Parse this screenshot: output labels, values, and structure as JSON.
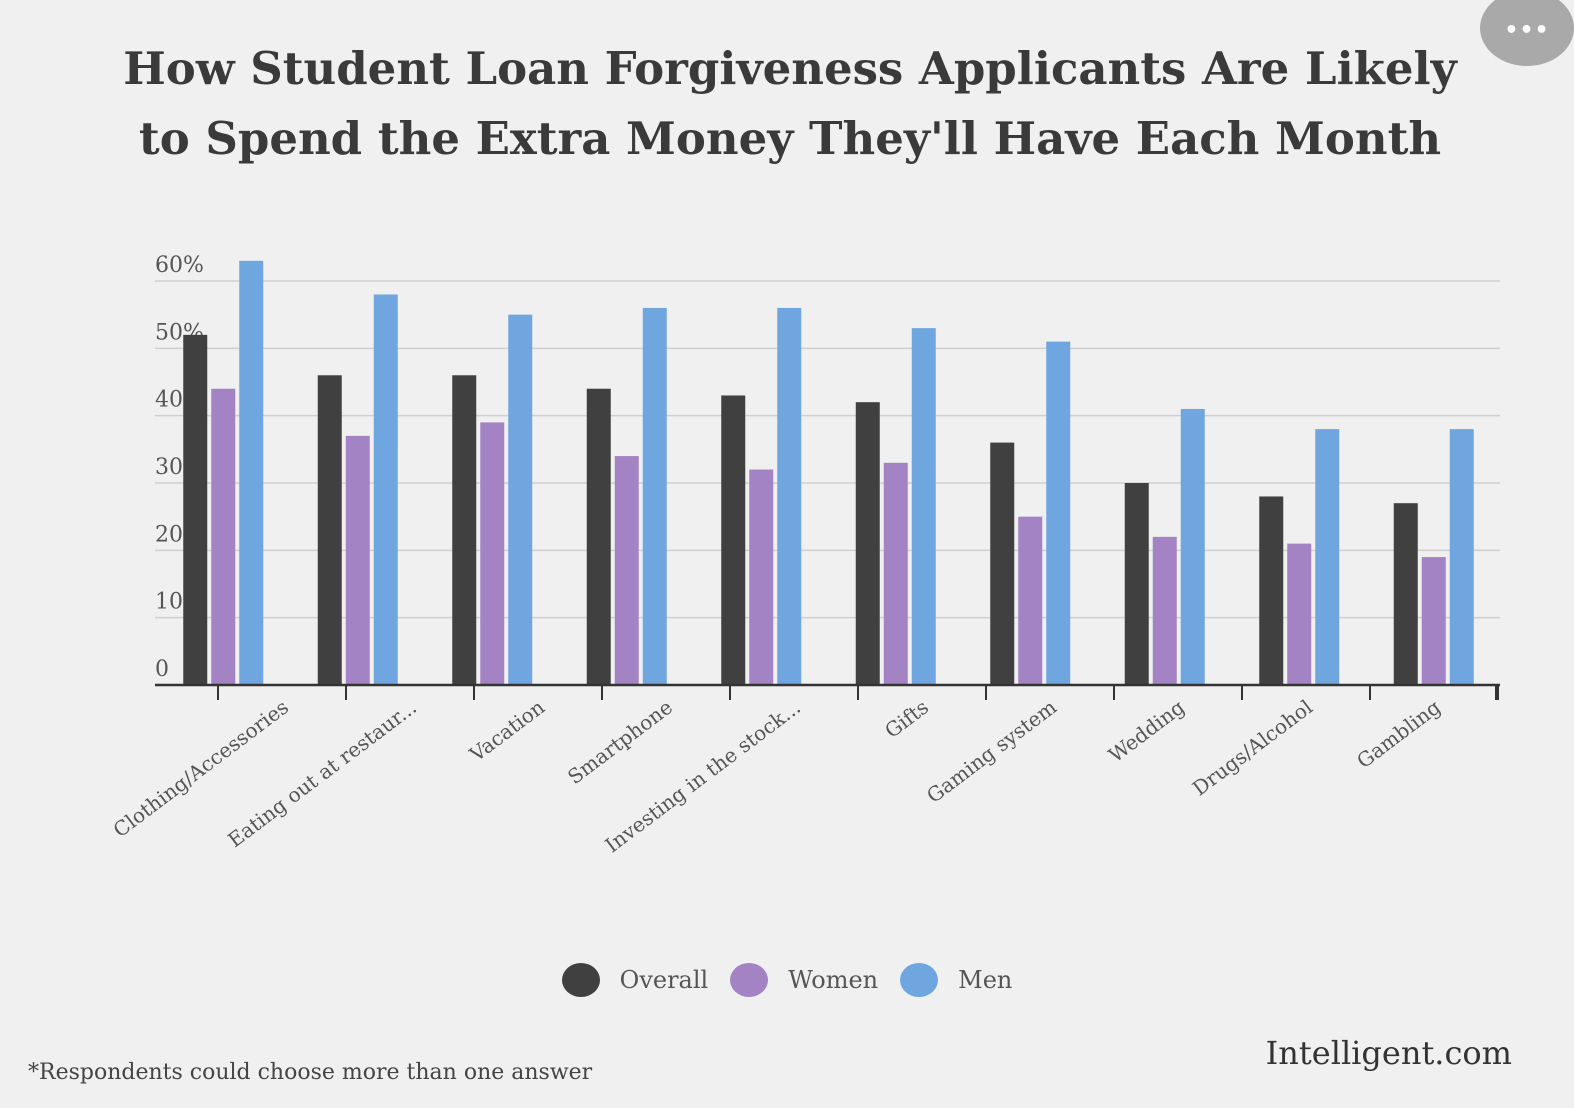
{
  "chart_data": {
    "type": "bar",
    "title": [
      "How Student Loan Forgiveness Applicants Are Likely",
      "to Spend the Extra Money They'll Have Each Month"
    ],
    "categories": [
      "Clothing/Accessories",
      "Eating out at restaur...",
      "Vacation",
      "Smartphone",
      "Investing in the stock...",
      "Gifts",
      "Gaming system",
      "Wedding",
      "Drugs/Alcohol",
      "Gambling"
    ],
    "series": [
      {
        "name": "Overall",
        "color": "#404040",
        "values": [
          52,
          46,
          46,
          44,
          43,
          42,
          36,
          30,
          28,
          27
        ]
      },
      {
        "name": "Women",
        "color": "#a383c4",
        "values": [
          44,
          37,
          39,
          34,
          32,
          33,
          25,
          22,
          21,
          19
        ]
      },
      {
        "name": "Men",
        "color": "#6fa6e0",
        "values": [
          63,
          58,
          55,
          56,
          56,
          53,
          51,
          41,
          38,
          38
        ]
      }
    ],
    "yticks": [
      "0",
      "10%",
      "20%",
      "30%",
      "40%",
      "50%",
      "60%"
    ],
    "ylim": [
      0,
      60
    ],
    "grid": true,
    "legend_position": "bottom-center"
  },
  "menu": {
    "label": "•••"
  },
  "footnote": "*Respondents could choose more than one answer",
  "brand": "Intelligent.com"
}
